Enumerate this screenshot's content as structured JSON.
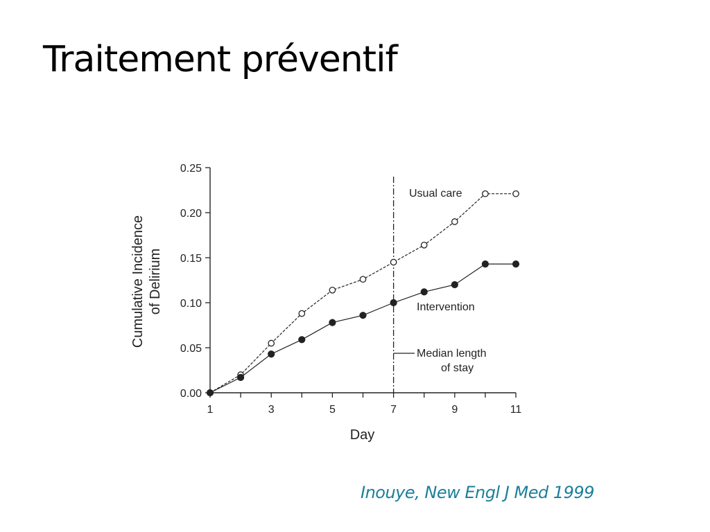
{
  "slide": {
    "title": "Traitement préventif",
    "citation": "Inouye, New Engl J Med 1999"
  },
  "colors": {
    "citation": "#1a7f9a",
    "lines": "#222222"
  },
  "chart_data": {
    "type": "line",
    "title": "",
    "xlabel": "Day",
    "ylabel": [
      "Cumulative Incidence",
      "of Delirium"
    ],
    "xlim": [
      1,
      11
    ],
    "ylim": [
      0,
      0.25
    ],
    "xticks": [
      1,
      3,
      5,
      7,
      9,
      11
    ],
    "yticks": [
      "0.00",
      "0.05",
      "0.10",
      "0.15",
      "0.20",
      "0.25"
    ],
    "grid": false,
    "series": [
      {
        "name": "Usual care",
        "marker": "open-circle",
        "line_style": "dashed",
        "x": [
          1,
          2,
          3,
          4,
          5,
          6,
          7,
          8,
          9,
          10,
          11
        ],
        "y": [
          0.0,
          0.02,
          0.055,
          0.088,
          0.114,
          0.126,
          0.145,
          0.164,
          0.19,
          0.221,
          0.221
        ]
      },
      {
        "name": "Intervention",
        "marker": "filled-circle",
        "line_style": "solid",
        "x": [
          1,
          2,
          3,
          4,
          5,
          6,
          7,
          8,
          9,
          10,
          11
        ],
        "y": [
          0.0,
          0.017,
          0.043,
          0.059,
          0.078,
          0.086,
          0.1,
          0.112,
          0.12,
          0.143,
          0.143
        ]
      }
    ],
    "reference_line": {
      "x": 7,
      "label": [
        "Median length",
        "of stay"
      ]
    }
  }
}
